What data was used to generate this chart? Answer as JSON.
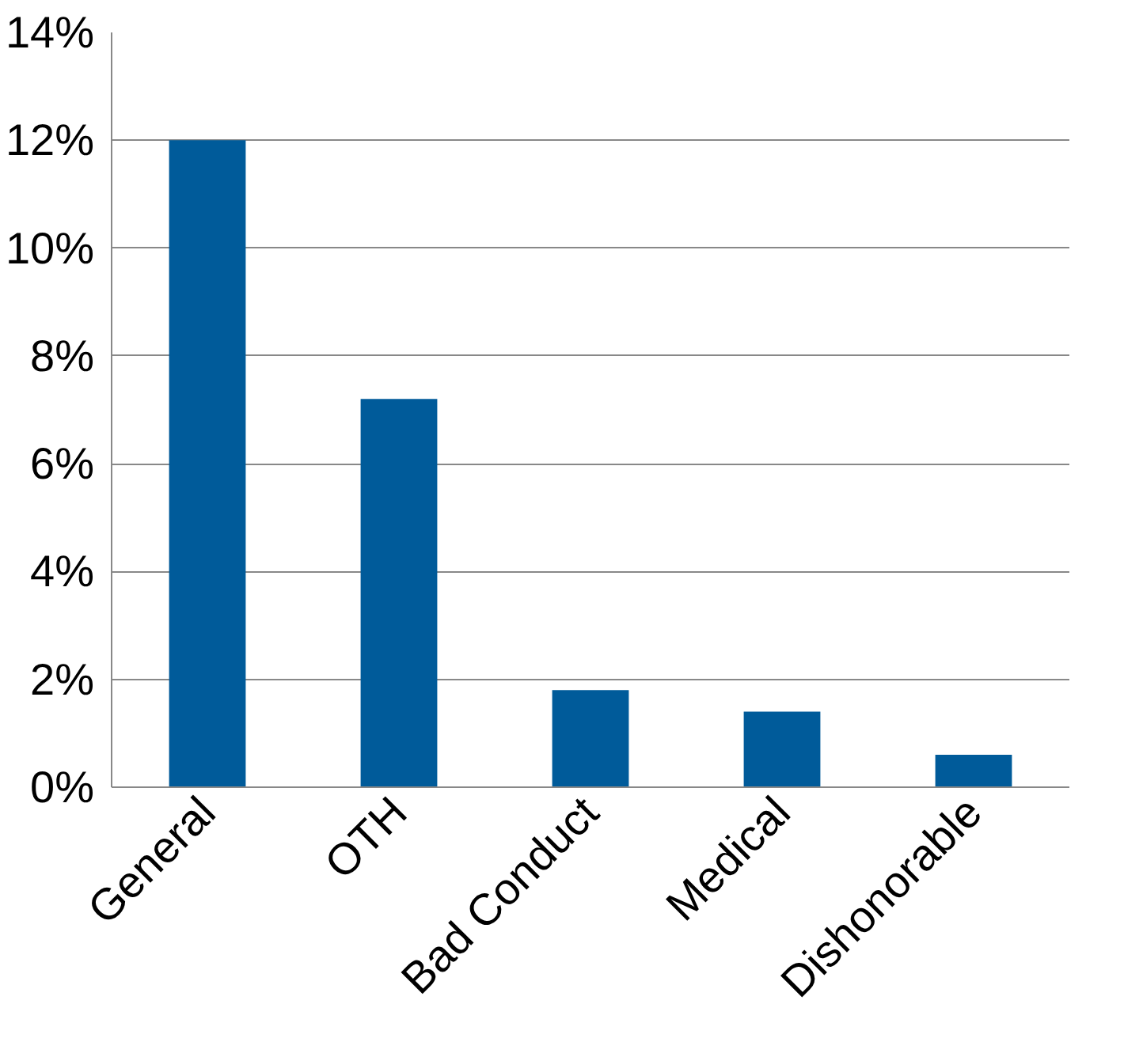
{
  "chart_data": {
    "type": "bar",
    "categories": [
      "General",
      "OTH",
      "Bad Conduct",
      "Medical",
      "Dishonorable"
    ],
    "values": [
      12.0,
      7.2,
      1.8,
      1.4,
      0.6
    ],
    "color": "#005b9a",
    "ylim": [
      0,
      14
    ],
    "yticks": [
      {
        "value": 0,
        "label": "0%"
      },
      {
        "value": 2,
        "label": "2%"
      },
      {
        "value": 4,
        "label": "4%"
      },
      {
        "value": 6,
        "label": "6%"
      },
      {
        "value": 8,
        "label": "8%"
      },
      {
        "value": 10,
        "label": "10%"
      },
      {
        "value": 12,
        "label": "12%"
      },
      {
        "value": 14,
        "label": "14%"
      }
    ],
    "grid": "y"
  }
}
